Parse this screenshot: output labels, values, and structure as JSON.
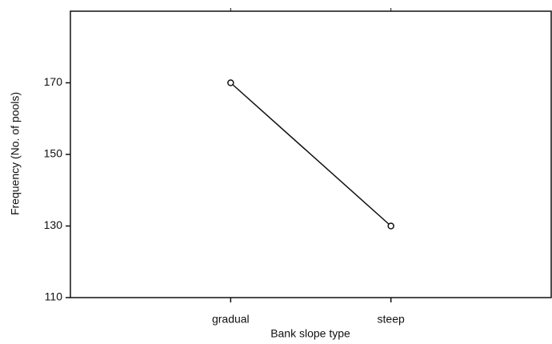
{
  "chart_data": {
    "type": "line",
    "x_label": "Bank slope type",
    "y_label": "Frequency (No. of pools)",
    "categories": [
      "gradual",
      "steep"
    ],
    "series": [
      {
        "name": "Frequency",
        "color": "#111111",
        "values": [
          170,
          130
        ]
      }
    ],
    "ylim": [
      110,
      190
    ],
    "yticks": [
      110,
      130,
      150,
      170
    ],
    "grid": false
  }
}
